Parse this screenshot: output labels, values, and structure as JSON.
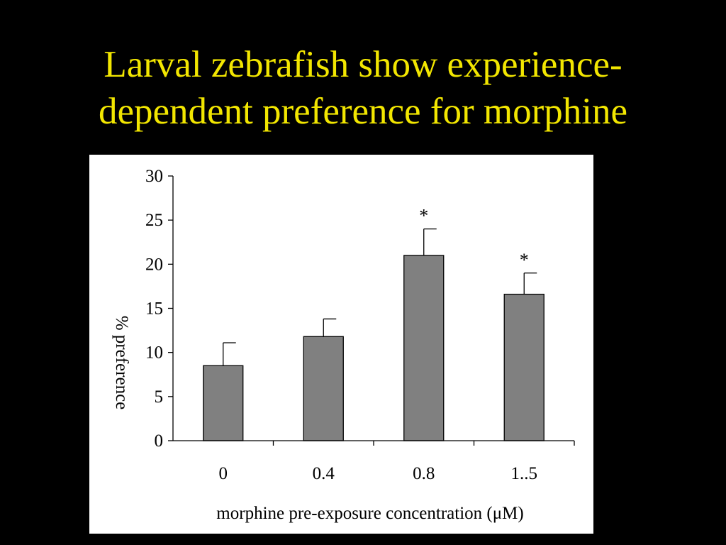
{
  "slide": {
    "title_line1": "Larval zebrafish show experience-",
    "title_line2": "dependent preference for morphine",
    "title_color": "#f2e600",
    "background": "#000000"
  },
  "chart_data": {
    "type": "bar",
    "categories": [
      "0",
      "0.4",
      "0.8",
      "1..5"
    ],
    "values": [
      8.5,
      11.8,
      21.0,
      16.6
    ],
    "error_bars": [
      2.6,
      2.0,
      3.0,
      2.4
    ],
    "significance": [
      "",
      "",
      "*",
      "*"
    ],
    "xlabel": "morphine pre-exposure concentration (μM)",
    "ylabel": "% preference",
    "ylim": [
      0,
      30
    ],
    "yticks": [
      0,
      5,
      10,
      15,
      20,
      25,
      30
    ],
    "bar_color": "#808080",
    "grid": false
  }
}
